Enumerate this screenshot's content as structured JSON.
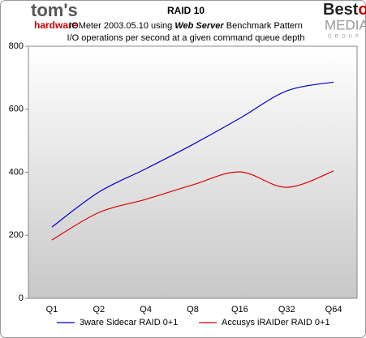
{
  "logo_left": {
    "name": "tom's",
    "sub": "hardware"
  },
  "logo_right": {
    "name": "Best",
    "name2": "of",
    "sub": "MEDIA",
    "sub2": "GROUP"
  },
  "chart_data": {
    "type": "line",
    "title": "RAID 10",
    "subtitle": [
      "IOMeter 2003.05.10 using",
      "Web Server",
      "Benchmark Pattern"
    ],
    "subtitle2": "I/O operations per second at a given command queue depth",
    "categories": [
      "Q1",
      "Q2",
      "Q4",
      "Q8",
      "Q16",
      "Q32",
      "Q64"
    ],
    "series": [
      {
        "name": "3ware Sidecar RAID 0+1",
        "color": "#0000cc",
        "values": [
          226,
          337,
          411,
          488,
          571,
          658,
          686
        ]
      },
      {
        "name": "Accusys iRAIDer RAID 0+1",
        "color": "#dd0000",
        "values": [
          185,
          272,
          314,
          360,
          401,
          352,
          404
        ]
      }
    ],
    "ylim": [
      0,
      800
    ],
    "yticks": [
      0,
      200,
      400,
      600,
      800
    ],
    "grid": false
  }
}
